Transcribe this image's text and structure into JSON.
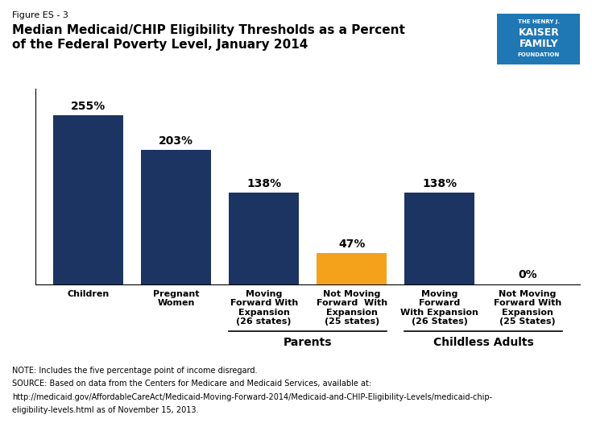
{
  "chart_data": {
    "type": "bar",
    "title": "Median Medicaid/CHIP Eligibility Thresholds as a Percent\nof the Federal Poverty Level, January 2014",
    "figure_label": "Figure ES - 3",
    "categories": [
      "Children",
      "Pregnant\nWomen",
      "Moving\nForward With\nExpansion\n(26 states)",
      "Not Moving\nForward  With\nExpansion\n(25 states)",
      "Moving\nForward\nWith Expansion\n(26 States)",
      "Not Moving\nForward With\nExpansion\n(25 States)"
    ],
    "values": [
      255,
      203,
      138,
      47,
      138,
      0
    ],
    "value_labels": [
      "255%",
      "203%",
      "138%",
      "47%",
      "138%",
      "0%"
    ],
    "colors": [
      "#1c3461",
      "#1c3461",
      "#1c3461",
      "#f4a21b",
      "#1c3461",
      "#1c3461"
    ],
    "data_labels": true,
    "ylim": [
      0,
      295
    ],
    "tick_labels": "x",
    "groups": [
      {
        "name": "Parents",
        "categories": [
          "Moving\nForward With\nExpansion\n(26 states)",
          "Not Moving\nForward  With\nExpansion\n(25 states)"
        ]
      },
      {
        "name": "Childless Adults",
        "categories": [
          "Moving\nForward\nWith Expansion\n(26 States)",
          "Not Moving\nForward With\nExpansion\n(25 States)"
        ]
      }
    ],
    "notes": [
      "NOTE: Includes the five percentage point of income disregard.",
      "SOURCE: Based on data from the Centers for Medicare and Medicaid Services, available at:",
      "http://medicaid.gov/AffordableCareAct/Medicaid-Moving-Forward-2014/Medicaid-and-CHIP-Eligibility-Levels/medicaid-chip-",
      "eligibility-levels.html as of November 15, 2013."
    ],
    "logo_text": [
      "THE HENRY J.",
      "KAISER",
      "FAMILY",
      "FOUNDATION"
    ]
  }
}
